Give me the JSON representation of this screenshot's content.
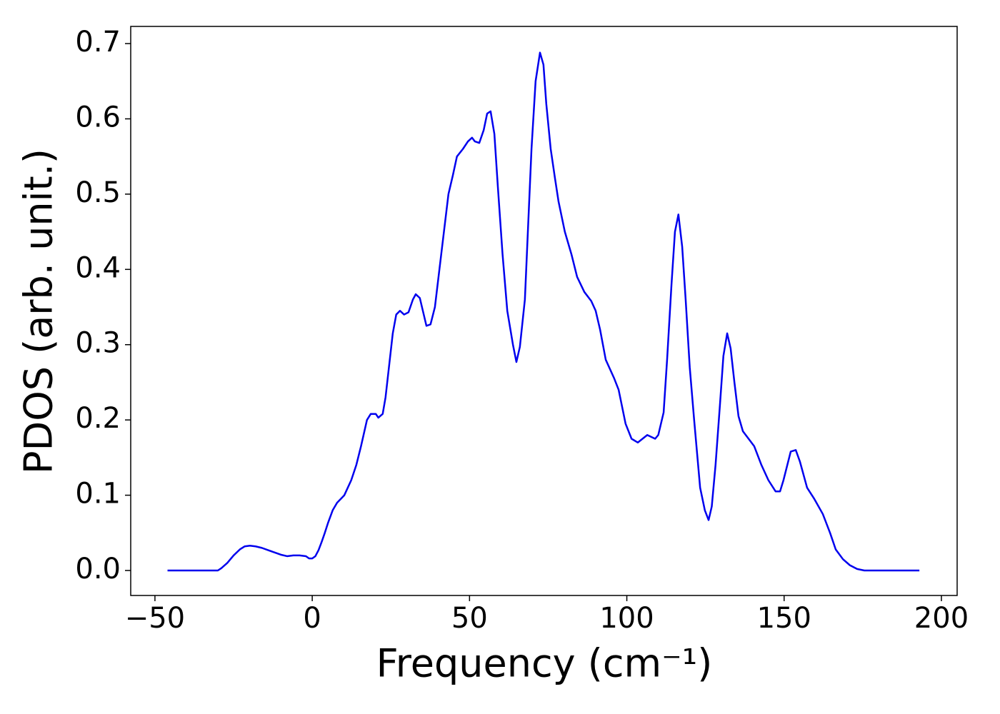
{
  "chart_data": {
    "type": "line",
    "xlabel": "Frequency (cm⁻¹)",
    "ylabel": "PDOS (arb. unit.)",
    "xlim": [
      -57.7,
      205
    ],
    "ylim": [
      -0.0332,
      0.7228
    ],
    "xticks": [
      {
        "value": -50,
        "label": "−50"
      },
      0,
      50,
      100,
      150,
      200
    ],
    "yticks": [
      {
        "value": 0,
        "label": "0.0"
      },
      0.1,
      0.2,
      0.3,
      0.4,
      0.5,
      0.6,
      0.7
    ],
    "grid": false,
    "series": [
      {
        "color": "#0000ee",
        "x": [
          -46,
          -30,
          -28.9,
          -27,
          -25,
          -23,
          -21.5,
          -19.8,
          -18,
          -16,
          -14,
          -12,
          -10,
          -8,
          -6,
          -4,
          -2,
          -1,
          0,
          1,
          2,
          3,
          4,
          5,
          6.5,
          7.9,
          10.2,
          12.4,
          14,
          15.5,
          17.4,
          18.6,
          20.2,
          21,
          22.4,
          23.3,
          25.6,
          26.7,
          27.9,
          29.2,
          30.6,
          32,
          32.9,
          34.2,
          36.3,
          37.6,
          39,
          41,
          43.3,
          44.7,
          46,
          47.9,
          49.5,
          50.8,
          51.7,
          53.1,
          54.5,
          55.6,
          56.7,
          57.9,
          59,
          60.5,
          62,
          63.8,
          64.9,
          66,
          67.6,
          69.7,
          71,
          72.4,
          73.5,
          74.4,
          75.8,
          77.2,
          78.3,
          80.3,
          82.4,
          84.2,
          86.5,
          88.7,
          90.1,
          91.5,
          93.3,
          96,
          97.4,
          99.6,
          101.5,
          103.5,
          105,
          106.5,
          109,
          110,
          111.7,
          112.8,
          114.2,
          115.3,
          116.4,
          117.6,
          118.7,
          120,
          121.4,
          123.3,
          124.8,
          126,
          127,
          128.2,
          129.6,
          130.7,
          131.9,
          133,
          134.2,
          135.5,
          136.9,
          138.7,
          140.5,
          142.8,
          145,
          147.3,
          148.7,
          149.8,
          152.1,
          153.7,
          155,
          157.3,
          159.6,
          162.3,
          164.6,
          166.4,
          168.7,
          170.9,
          173.2,
          175.5,
          193
        ],
        "values": [
          0,
          0,
          0.003,
          0.01,
          0.02,
          0.028,
          0.032,
          0.033,
          0.032,
          0.03,
          0.027,
          0.024,
          0.021,
          0.019,
          0.02,
          0.02,
          0.019,
          0.016,
          0.016,
          0.019,
          0.027,
          0.038,
          0.05,
          0.063,
          0.08,
          0.09,
          0.1,
          0.12,
          0.14,
          0.165,
          0.2,
          0.208,
          0.208,
          0.203,
          0.208,
          0.23,
          0.315,
          0.34,
          0.345,
          0.34,
          0.343,
          0.36,
          0.367,
          0.362,
          0.325,
          0.327,
          0.35,
          0.42,
          0.5,
          0.525,
          0.55,
          0.56,
          0.57,
          0.575,
          0.57,
          0.568,
          0.585,
          0.607,
          0.61,
          0.58,
          0.51,
          0.42,
          0.345,
          0.3,
          0.277,
          0.297,
          0.36,
          0.56,
          0.65,
          0.688,
          0.672,
          0.62,
          0.56,
          0.52,
          0.49,
          0.45,
          0.42,
          0.39,
          0.37,
          0.358,
          0.345,
          0.32,
          0.28,
          0.255,
          0.24,
          0.195,
          0.175,
          0.17,
          0.175,
          0.18,
          0.175,
          0.18,
          0.21,
          0.28,
          0.38,
          0.45,
          0.473,
          0.43,
          0.36,
          0.27,
          0.2,
          0.11,
          0.08,
          0.067,
          0.085,
          0.14,
          0.22,
          0.285,
          0.315,
          0.295,
          0.25,
          0.205,
          0.185,
          0.175,
          0.165,
          0.14,
          0.12,
          0.105,
          0.105,
          0.12,
          0.158,
          0.16,
          0.145,
          0.11,
          0.095,
          0.075,
          0.05,
          0.028,
          0.015,
          0.007,
          0.002,
          0,
          0
        ]
      }
    ]
  }
}
